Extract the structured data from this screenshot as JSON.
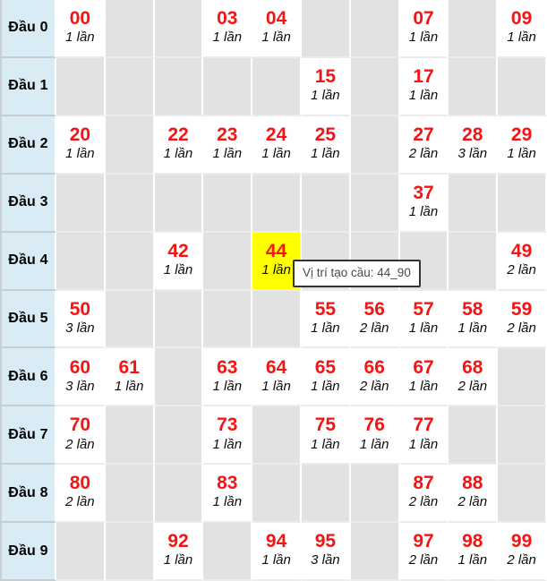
{
  "colors": {
    "number_red": "#f51414",
    "header_bg": "#d9ebf5",
    "empty_cell_bg": "#e2e2e2",
    "filled_cell_bg": "#ffffff",
    "highlight_bg": "#ffff00",
    "tooltip_border": "#333333"
  },
  "tooltip": {
    "text": "Vị trí tạo cầu: 44_90"
  },
  "highlight": {
    "row": 4,
    "col": 4,
    "number": "44"
  },
  "grid": {
    "rows": [
      {
        "label": "Đầu 0",
        "cells": [
          {
            "num": "00",
            "count": "1 lần"
          },
          null,
          null,
          {
            "num": "03",
            "count": "1 lần"
          },
          {
            "num": "04",
            "count": "1 lần"
          },
          null,
          null,
          {
            "num": "07",
            "count": "1 lần"
          },
          null,
          {
            "num": "09",
            "count": "1 lần"
          }
        ]
      },
      {
        "label": "Đầu 1",
        "cells": [
          null,
          null,
          null,
          null,
          null,
          {
            "num": "15",
            "count": "1 lần"
          },
          null,
          {
            "num": "17",
            "count": "1 lần"
          },
          null,
          null
        ]
      },
      {
        "label": "Đầu 2",
        "cells": [
          {
            "num": "20",
            "count": "1 lần"
          },
          null,
          {
            "num": "22",
            "count": "1 lần"
          },
          {
            "num": "23",
            "count": "1 lần"
          },
          {
            "num": "24",
            "count": "1 lần"
          },
          {
            "num": "25",
            "count": "1 lần"
          },
          null,
          {
            "num": "27",
            "count": "2 lần"
          },
          {
            "num": "28",
            "count": "3 lần"
          },
          {
            "num": "29",
            "count": "1 lần"
          }
        ]
      },
      {
        "label": "Đầu 3",
        "cells": [
          null,
          null,
          null,
          null,
          null,
          null,
          null,
          {
            "num": "37",
            "count": "1 lần"
          },
          null,
          null
        ]
      },
      {
        "label": "Đầu 4",
        "cells": [
          null,
          null,
          {
            "num": "42",
            "count": "1 lần"
          },
          null,
          {
            "num": "44",
            "count": "1 lần"
          },
          null,
          null,
          null,
          null,
          {
            "num": "49",
            "count": "2 lần"
          }
        ]
      },
      {
        "label": "Đầu 5",
        "cells": [
          {
            "num": "50",
            "count": "3 lần"
          },
          null,
          null,
          null,
          null,
          {
            "num": "55",
            "count": "1 lần"
          },
          {
            "num": "56",
            "count": "2 lần"
          },
          {
            "num": "57",
            "count": "1 lần"
          },
          {
            "num": "58",
            "count": "1 lần"
          },
          {
            "num": "59",
            "count": "2 lần"
          }
        ]
      },
      {
        "label": "Đầu 6",
        "cells": [
          {
            "num": "60",
            "count": "3 lần"
          },
          {
            "num": "61",
            "count": "1 lần"
          },
          null,
          {
            "num": "63",
            "count": "1 lần"
          },
          {
            "num": "64",
            "count": "1 lần"
          },
          {
            "num": "65",
            "count": "1 lần"
          },
          {
            "num": "66",
            "count": "2 lần"
          },
          {
            "num": "67",
            "count": "1 lần"
          },
          {
            "num": "68",
            "count": "2 lần"
          },
          null
        ]
      },
      {
        "label": "Đầu 7",
        "cells": [
          {
            "num": "70",
            "count": "2 lần"
          },
          null,
          null,
          {
            "num": "73",
            "count": "1 lần"
          },
          null,
          {
            "num": "75",
            "count": "1 lần"
          },
          {
            "num": "76",
            "count": "1 lần"
          },
          {
            "num": "77",
            "count": "1 lần"
          },
          null,
          null
        ]
      },
      {
        "label": "Đầu 8",
        "cells": [
          {
            "num": "80",
            "count": "2 lần"
          },
          null,
          null,
          {
            "num": "83",
            "count": "1 lần"
          },
          null,
          null,
          null,
          {
            "num": "87",
            "count": "2 lần"
          },
          {
            "num": "88",
            "count": "2 lần"
          },
          null
        ]
      },
      {
        "label": "Đầu 9",
        "cells": [
          null,
          null,
          {
            "num": "92",
            "count": "1 lần"
          },
          null,
          {
            "num": "94",
            "count": "1 lần"
          },
          {
            "num": "95",
            "count": "3 lần"
          },
          null,
          {
            "num": "97",
            "count": "2 lần"
          },
          {
            "num": "98",
            "count": "1 lần"
          },
          {
            "num": "99",
            "count": "2 lần"
          }
        ]
      }
    ]
  }
}
